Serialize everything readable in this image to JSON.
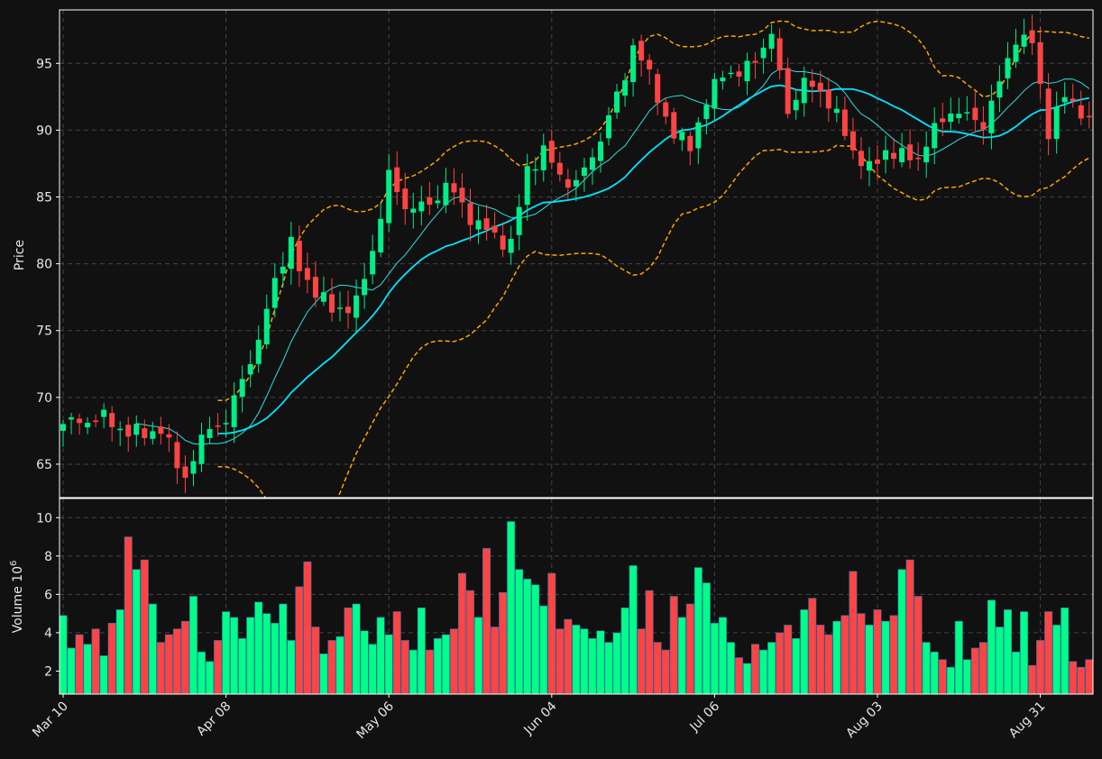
{
  "chart_data": {
    "type": "candlestick",
    "title": "",
    "ylabel_price": "Price",
    "ylabel_volume": "Volume",
    "volume_exponent_label": "10",
    "volume_exponent_power": "6",
    "grid": true,
    "price_ylim": [
      62.5,
      99
    ],
    "volume_ylim": [
      0.8,
      11
    ],
    "price_ticks": [
      65,
      70,
      75,
      80,
      85,
      90,
      95
    ],
    "volume_ticks": [
      2,
      4,
      6,
      8,
      10
    ],
    "x_ticks": [
      {
        "index": 0,
        "label": "Mar 10"
      },
      {
        "index": 20,
        "label": "Apr 08"
      },
      {
        "index": 40,
        "label": "May 06"
      },
      {
        "index": 60,
        "label": "Jun 04"
      },
      {
        "index": 80,
        "label": "Jul 06"
      },
      {
        "index": 100,
        "label": "Aug 03"
      },
      {
        "index": 120,
        "label": "Aug 31"
      }
    ],
    "n_bars": 127,
    "colors": {
      "background": "#111111",
      "up": "#00ee88",
      "down": "#ff4444",
      "volume_up": "#00ff88",
      "volume_down": "#ff4444",
      "ma_fast": "#33dddd",
      "ma_slow": "#00e5ff",
      "bands": "#ffa500",
      "grid": "#444444",
      "axes": "#ffffff"
    },
    "close_anchors": [
      [
        0,
        68.0
      ],
      [
        5,
        68.5
      ],
      [
        8,
        67.3
      ],
      [
        12,
        67.5
      ],
      [
        15,
        64.0
      ],
      [
        18,
        68.0
      ],
      [
        20,
        68.0
      ],
      [
        22,
        71.6
      ],
      [
        24,
        74.0
      ],
      [
        26,
        79.0
      ],
      [
        28,
        81.5
      ],
      [
        29,
        79.5
      ],
      [
        31,
        78.0
      ],
      [
        33,
        76.5
      ],
      [
        36,
        77.0
      ],
      [
        38,
        81.0
      ],
      [
        40,
        86.5
      ],
      [
        42,
        84.3
      ],
      [
        45,
        84.3
      ],
      [
        47,
        86.0
      ],
      [
        50,
        83.5
      ],
      [
        53,
        82.0
      ],
      [
        55,
        81.5
      ],
      [
        57,
        87.0
      ],
      [
        59,
        88.5
      ],
      [
        61,
        86.5
      ],
      [
        63,
        86.0
      ],
      [
        65,
        88.0
      ],
      [
        67,
        91.0
      ],
      [
        69,
        94.0
      ],
      [
        70,
        96.5
      ],
      [
        72,
        94.0
      ],
      [
        75,
        89.5
      ],
      [
        77,
        89.0
      ],
      [
        79,
        92.0
      ],
      [
        81,
        94.5
      ],
      [
        83,
        94.0
      ],
      [
        85,
        95.5
      ],
      [
        87,
        97.0
      ],
      [
        89,
        91.5
      ],
      [
        91,
        93.5
      ],
      [
        93,
        93.0
      ],
      [
        95,
        91.0
      ],
      [
        97,
        88.5
      ],
      [
        99,
        87.0
      ],
      [
        101,
        88.5
      ],
      [
        103,
        88.0
      ],
      [
        105,
        88.0
      ],
      [
        107,
        90.0
      ],
      [
        109,
        91.5
      ],
      [
        111,
        91.0
      ],
      [
        113,
        90.5
      ],
      [
        115,
        93.5
      ],
      [
        117,
        97.0
      ],
      [
        119,
        96.5
      ],
      [
        121,
        90.0
      ],
      [
        123,
        92.5
      ],
      [
        125,
        91.5
      ],
      [
        126,
        90.5
      ]
    ],
    "volume_values": [
      4.9,
      3.2,
      3.9,
      3.4,
      4.2,
      2.8,
      4.5,
      5.2,
      9.0,
      7.3,
      7.8,
      5.5,
      3.5,
      3.9,
      4.2,
      4.6,
      5.9,
      3.0,
      2.5,
      3.6,
      5.1,
      4.8,
      3.7,
      4.8,
      5.6,
      5.0,
      4.5,
      5.5,
      3.6,
      6.4,
      7.7,
      4.3,
      2.9,
      3.6,
      3.8,
      5.3,
      5.5,
      4.1,
      3.4,
      4.8,
      3.9,
      5.1,
      3.6,
      3.1,
      5.3,
      3.1,
      3.7,
      3.9,
      4.2,
      7.1,
      6.2,
      4.8,
      8.4,
      4.3,
      6.1,
      9.8,
      7.3,
      6.8,
      6.5,
      5.4,
      7.1,
      4.2,
      4.7,
      4.4,
      4.2,
      3.7,
      4.1,
      3.5,
      4.0,
      5.3,
      7.5,
      4.2,
      6.2,
      3.5,
      3.1,
      5.9,
      4.8,
      5.5,
      7.4,
      6.6,
      4.5,
      4.8,
      3.5,
      2.7,
      2.4,
      3.4,
      3.1,
      3.5,
      4.0,
      4.4,
      3.7,
      5.2,
      5.8,
      4.4,
      3.9,
      4.6,
      4.9,
      7.2,
      5.0,
      4.4,
      5.2,
      4.6,
      4.9,
      7.3,
      7.8,
      5.9,
      3.5,
      3.0,
      2.6,
      2.2,
      4.6,
      2.6,
      3.2,
      3.5,
      5.7,
      4.3,
      5.2,
      3.0,
      5.1,
      2.3,
      3.6,
      5.1,
      4.4,
      5.3,
      2.5,
      2.2,
      2.6
    ]
  }
}
